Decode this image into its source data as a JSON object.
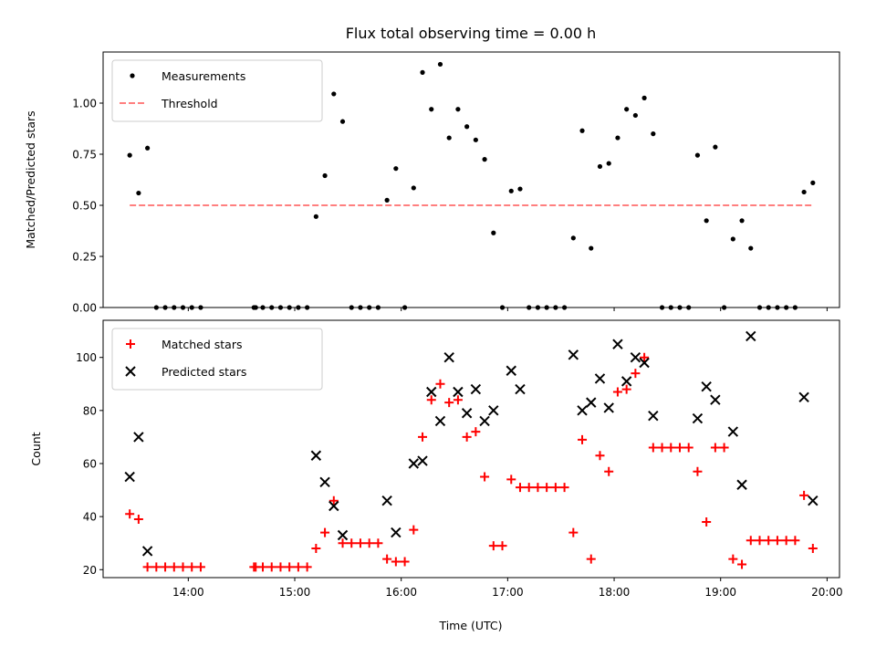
{
  "title": "Flux total observing time = 0.00 h",
  "xlabel": "Time (UTC)",
  "chart_data": [
    {
      "type": "scatter",
      "ylabel": "Matched/Predicted stars",
      "ylim": [
        0,
        1.25
      ],
      "xlim": [
        "13:12",
        "20:07"
      ],
      "yticks": [
        "0.00",
        "0.25",
        "0.50",
        "0.75",
        "1.00"
      ],
      "legend_position": "top-left",
      "series": [
        {
          "name": "Measurements",
          "color": "#000000",
          "marker": "dot",
          "points": [
            [
              "13:27",
              0.745
            ],
            [
              "13:32",
              0.56
            ],
            [
              "13:37",
              0.78
            ],
            [
              "13:42",
              0
            ],
            [
              "13:47",
              0
            ],
            [
              "13:52",
              0
            ],
            [
              "13:57",
              0
            ],
            [
              "14:02",
              0
            ],
            [
              "14:07",
              0
            ],
            [
              "14:37",
              0
            ],
            [
              "14:38",
              0
            ],
            [
              "14:42",
              0
            ],
            [
              "14:47",
              0
            ],
            [
              "14:52",
              0
            ],
            [
              "14:57",
              0
            ],
            [
              "15:02",
              0
            ],
            [
              "15:07",
              0
            ],
            [
              "15:12",
              0.445
            ],
            [
              "15:17",
              0.645
            ],
            [
              "15:22",
              1.045
            ],
            [
              "15:27",
              0.91
            ],
            [
              "15:32",
              0
            ],
            [
              "15:37",
              0
            ],
            [
              "15:42",
              0
            ],
            [
              "15:47",
              0
            ],
            [
              "15:52",
              0.525
            ],
            [
              "15:57",
              0.68
            ],
            [
              "16:02",
              0
            ],
            [
              "16:07",
              0.585
            ],
            [
              "16:12",
              1.15
            ],
            [
              "16:17",
              0.97
            ],
            [
              "16:22",
              1.19
            ],
            [
              "16:27",
              0.83
            ],
            [
              "16:32",
              0.97
            ],
            [
              "16:37",
              0.885
            ],
            [
              "16:42",
              0.82
            ],
            [
              "16:47",
              0.725
            ],
            [
              "16:52",
              0.365
            ],
            [
              "16:57",
              0
            ],
            [
              "17:02",
              0.57
            ],
            [
              "17:07",
              0.58
            ],
            [
              "17:12",
              0
            ],
            [
              "17:17",
              0
            ],
            [
              "17:22",
              0
            ],
            [
              "17:27",
              0
            ],
            [
              "17:32",
              0
            ],
            [
              "17:37",
              0.34
            ],
            [
              "17:42",
              0.865
            ],
            [
              "17:47",
              0.29
            ],
            [
              "17:52",
              0.69
            ],
            [
              "17:57",
              0.705
            ],
            [
              "18:02",
              0.83
            ],
            [
              "18:07",
              0.97
            ],
            [
              "18:12",
              0.94
            ],
            [
              "18:17",
              1.025
            ],
            [
              "18:22",
              0.85
            ],
            [
              "18:27",
              0
            ],
            [
              "18:32",
              0
            ],
            [
              "18:37",
              0
            ],
            [
              "18:42",
              0
            ],
            [
              "18:47",
              0.745
            ],
            [
              "18:52",
              0.425
            ],
            [
              "18:57",
              0.785
            ],
            [
              "19:02",
              0
            ],
            [
              "19:07",
              0.335
            ],
            [
              "19:12",
              0.425
            ],
            [
              "19:17",
              0.29
            ],
            [
              "19:22",
              0
            ],
            [
              "19:27",
              0
            ],
            [
              "19:32",
              0
            ],
            [
              "19:37",
              0
            ],
            [
              "19:42",
              0
            ],
            [
              "19:47",
              0.565
            ],
            [
              "19:52",
              0.61
            ]
          ]
        },
        {
          "name": "Threshold",
          "color": "#ff7f7f",
          "style": "dashed",
          "points": [
            [
              "13:27",
              0.5
            ],
            [
              "19:52",
              0.5
            ]
          ]
        }
      ]
    },
    {
      "type": "scatter",
      "ylabel": "Count",
      "ylim": [
        17,
        114
      ],
      "xlim": [
        "13:12",
        "20:07"
      ],
      "xticks": [
        "14:00",
        "15:00",
        "16:00",
        "17:00",
        "18:00",
        "19:00",
        "20:00"
      ],
      "yticks": [
        "20",
        "40",
        "60",
        "80",
        "100"
      ],
      "legend_position": "top-left",
      "series": [
        {
          "name": "Matched stars",
          "color": "#ff0000",
          "marker": "plus",
          "points": [
            [
              "13:27",
              41
            ],
            [
              "13:32",
              39
            ],
            [
              "13:37",
              21
            ],
            [
              "13:42",
              21
            ],
            [
              "13:47",
              21
            ],
            [
              "13:52",
              21
            ],
            [
              "13:57",
              21
            ],
            [
              "14:02",
              21
            ],
            [
              "14:07",
              21
            ],
            [
              "14:37",
              21
            ],
            [
              "14:38",
              21
            ],
            [
              "14:42",
              21
            ],
            [
              "14:47",
              21
            ],
            [
              "14:52",
              21
            ],
            [
              "14:57",
              21
            ],
            [
              "15:02",
              21
            ],
            [
              "15:07",
              21
            ],
            [
              "15:12",
              28
            ],
            [
              "15:17",
              34
            ],
            [
              "15:22",
              46
            ],
            [
              "15:27",
              30
            ],
            [
              "15:32",
              30
            ],
            [
              "15:37",
              30
            ],
            [
              "15:42",
              30
            ],
            [
              "15:47",
              30
            ],
            [
              "15:52",
              24
            ],
            [
              "15:57",
              23
            ],
            [
              "16:02",
              23
            ],
            [
              "16:07",
              35
            ],
            [
              "16:12",
              70
            ],
            [
              "16:17",
              84
            ],
            [
              "16:22",
              90
            ],
            [
              "16:27",
              83
            ],
            [
              "16:32",
              84
            ],
            [
              "16:37",
              70
            ],
            [
              "16:42",
              72
            ],
            [
              "16:47",
              55
            ],
            [
              "16:52",
              29
            ],
            [
              "16:57",
              29
            ],
            [
              "17:02",
              54
            ],
            [
              "17:07",
              51
            ],
            [
              "17:12",
              51
            ],
            [
              "17:17",
              51
            ],
            [
              "17:22",
              51
            ],
            [
              "17:27",
              51
            ],
            [
              "17:32",
              51
            ],
            [
              "17:37",
              34
            ],
            [
              "17:42",
              69
            ],
            [
              "17:47",
              24
            ],
            [
              "17:52",
              63
            ],
            [
              "17:57",
              57
            ],
            [
              "18:02",
              87
            ],
            [
              "18:07",
              88
            ],
            [
              "18:12",
              94
            ],
            [
              "18:17",
              100
            ],
            [
              "18:22",
              66
            ],
            [
              "18:27",
              66
            ],
            [
              "18:32",
              66
            ],
            [
              "18:37",
              66
            ],
            [
              "18:42",
              66
            ],
            [
              "18:47",
              57
            ],
            [
              "18:52",
              38
            ],
            [
              "18:57",
              66
            ],
            [
              "19:02",
              66
            ],
            [
              "19:07",
              24
            ],
            [
              "19:12",
              22
            ],
            [
              "19:17",
              31
            ],
            [
              "19:22",
              31
            ],
            [
              "19:27",
              31
            ],
            [
              "19:32",
              31
            ],
            [
              "19:37",
              31
            ],
            [
              "19:42",
              31
            ],
            [
              "19:47",
              48
            ],
            [
              "19:52",
              28
            ]
          ]
        },
        {
          "name": "Predicted stars",
          "color": "#000000",
          "marker": "x",
          "points": [
            [
              "13:27",
              55
            ],
            [
              "13:32",
              70
            ],
            [
              "13:37",
              27
            ],
            [
              "15:12",
              63
            ],
            [
              "15:17",
              53
            ],
            [
              "15:22",
              44
            ],
            [
              "15:27",
              33
            ],
            [
              "15:52",
              46
            ],
            [
              "15:57",
              34
            ],
            [
              "16:07",
              60
            ],
            [
              "16:12",
              61
            ],
            [
              "16:17",
              87
            ],
            [
              "16:22",
              76
            ],
            [
              "16:27",
              100
            ],
            [
              "16:32",
              87
            ],
            [
              "16:37",
              79
            ],
            [
              "16:42",
              88
            ],
            [
              "16:47",
              76
            ],
            [
              "16:52",
              80
            ],
            [
              "17:02",
              95
            ],
            [
              "17:07",
              88
            ],
            [
              "17:37",
              101
            ],
            [
              "17:42",
              80
            ],
            [
              "17:47",
              83
            ],
            [
              "17:52",
              92
            ],
            [
              "17:57",
              81
            ],
            [
              "18:02",
              105
            ],
            [
              "18:07",
              91
            ],
            [
              "18:12",
              100
            ],
            [
              "18:17",
              98
            ],
            [
              "18:22",
              78
            ],
            [
              "18:47",
              77
            ],
            [
              "18:52",
              89
            ],
            [
              "18:57",
              84
            ],
            [
              "19:07",
              72
            ],
            [
              "19:12",
              52
            ],
            [
              "19:17",
              108
            ],
            [
              "19:47",
              85
            ],
            [
              "19:52",
              46
            ]
          ]
        }
      ]
    }
  ]
}
